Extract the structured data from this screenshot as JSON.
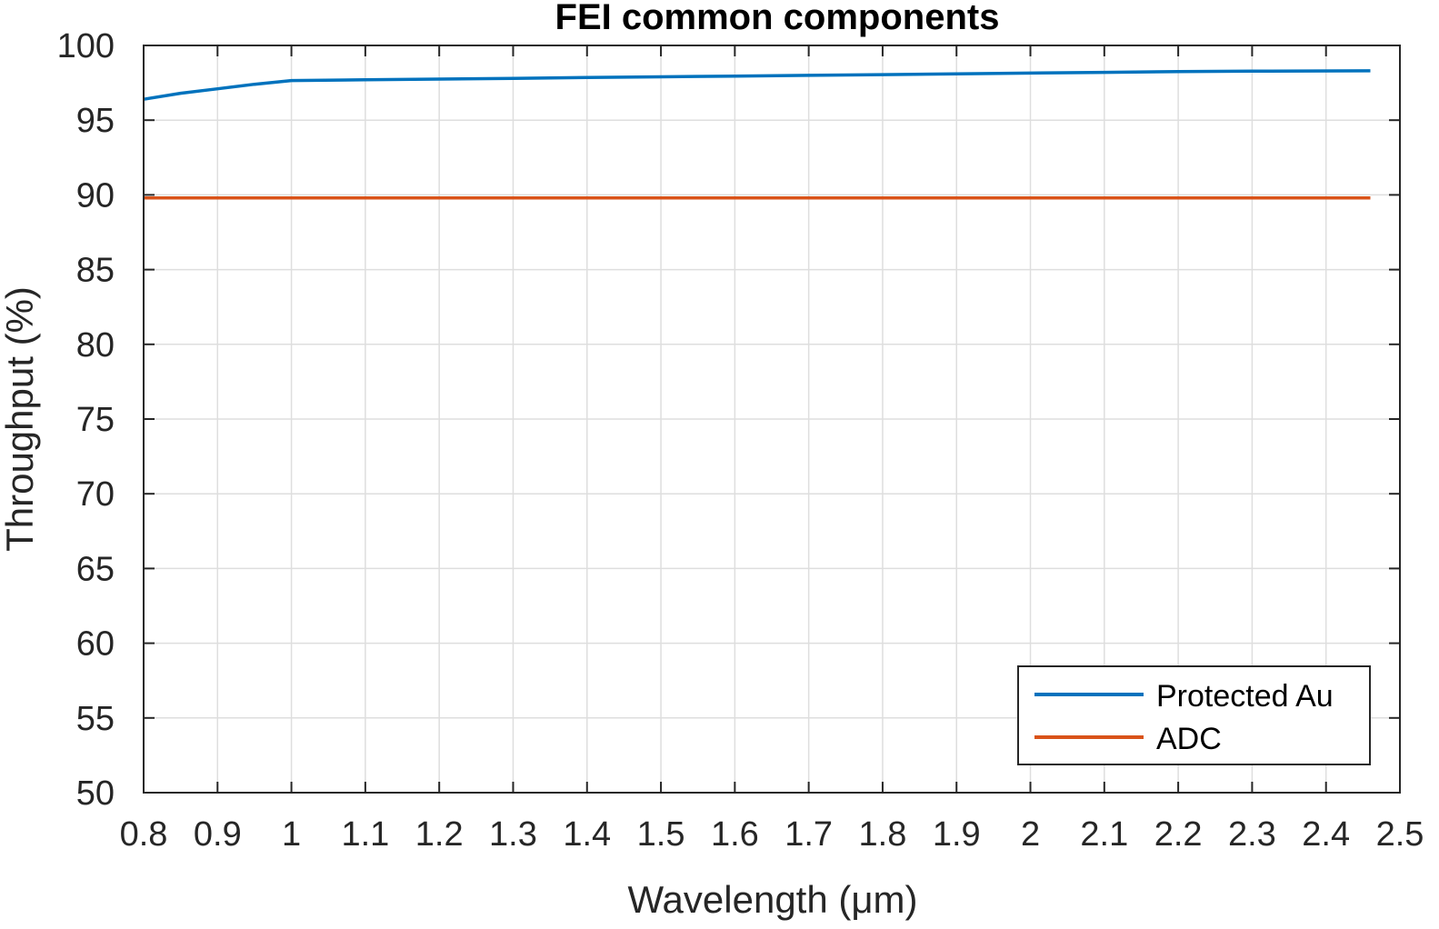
{
  "chart_data": {
    "type": "line",
    "title": "FEI common components",
    "xlabel": "Wavelength (μm)",
    "ylabel": "Throughput (%)",
    "xlim": [
      0.8,
      2.5
    ],
    "ylim": [
      50,
      100
    ],
    "xticks": [
      0.8,
      0.9,
      1,
      1.1,
      1.2,
      1.3,
      1.4,
      1.5,
      1.6,
      1.7,
      1.8,
      1.9,
      2,
      2.1,
      2.2,
      2.3,
      2.4,
      2.5
    ],
    "xtick_labels": [
      "0.8",
      "0.9",
      "1",
      "1.1",
      "1.2",
      "1.3",
      "1.4",
      "1.5",
      "1.6",
      "1.7",
      "1.8",
      "1.9",
      "2",
      "2.1",
      "2.2",
      "2.3",
      "2.4",
      "2.5"
    ],
    "yticks": [
      50,
      55,
      60,
      65,
      70,
      75,
      80,
      85,
      90,
      95,
      100
    ],
    "ytick_labels": [
      "50",
      "55",
      "60",
      "65",
      "70",
      "75",
      "80",
      "85",
      "90",
      "95",
      "100"
    ],
    "grid": true,
    "legend_position": "bottom-right",
    "series": [
      {
        "name": "Protected Au",
        "color": "#0072BD",
        "x": [
          0.8,
          0.85,
          0.9,
          0.95,
          1.0,
          1.1,
          1.2,
          1.3,
          1.4,
          1.5,
          1.6,
          1.7,
          1.8,
          1.9,
          2.0,
          2.1,
          2.2,
          2.3,
          2.46
        ],
        "y": [
          96.4,
          96.8,
          97.1,
          97.4,
          97.65,
          97.7,
          97.75,
          97.8,
          97.85,
          97.9,
          97.95,
          98.0,
          98.05,
          98.1,
          98.15,
          98.2,
          98.25,
          98.28,
          98.3
        ]
      },
      {
        "name": "ADC",
        "color": "#D95319",
        "x": [
          0.8,
          2.46
        ],
        "y": [
          89.8,
          89.8
        ]
      }
    ]
  }
}
